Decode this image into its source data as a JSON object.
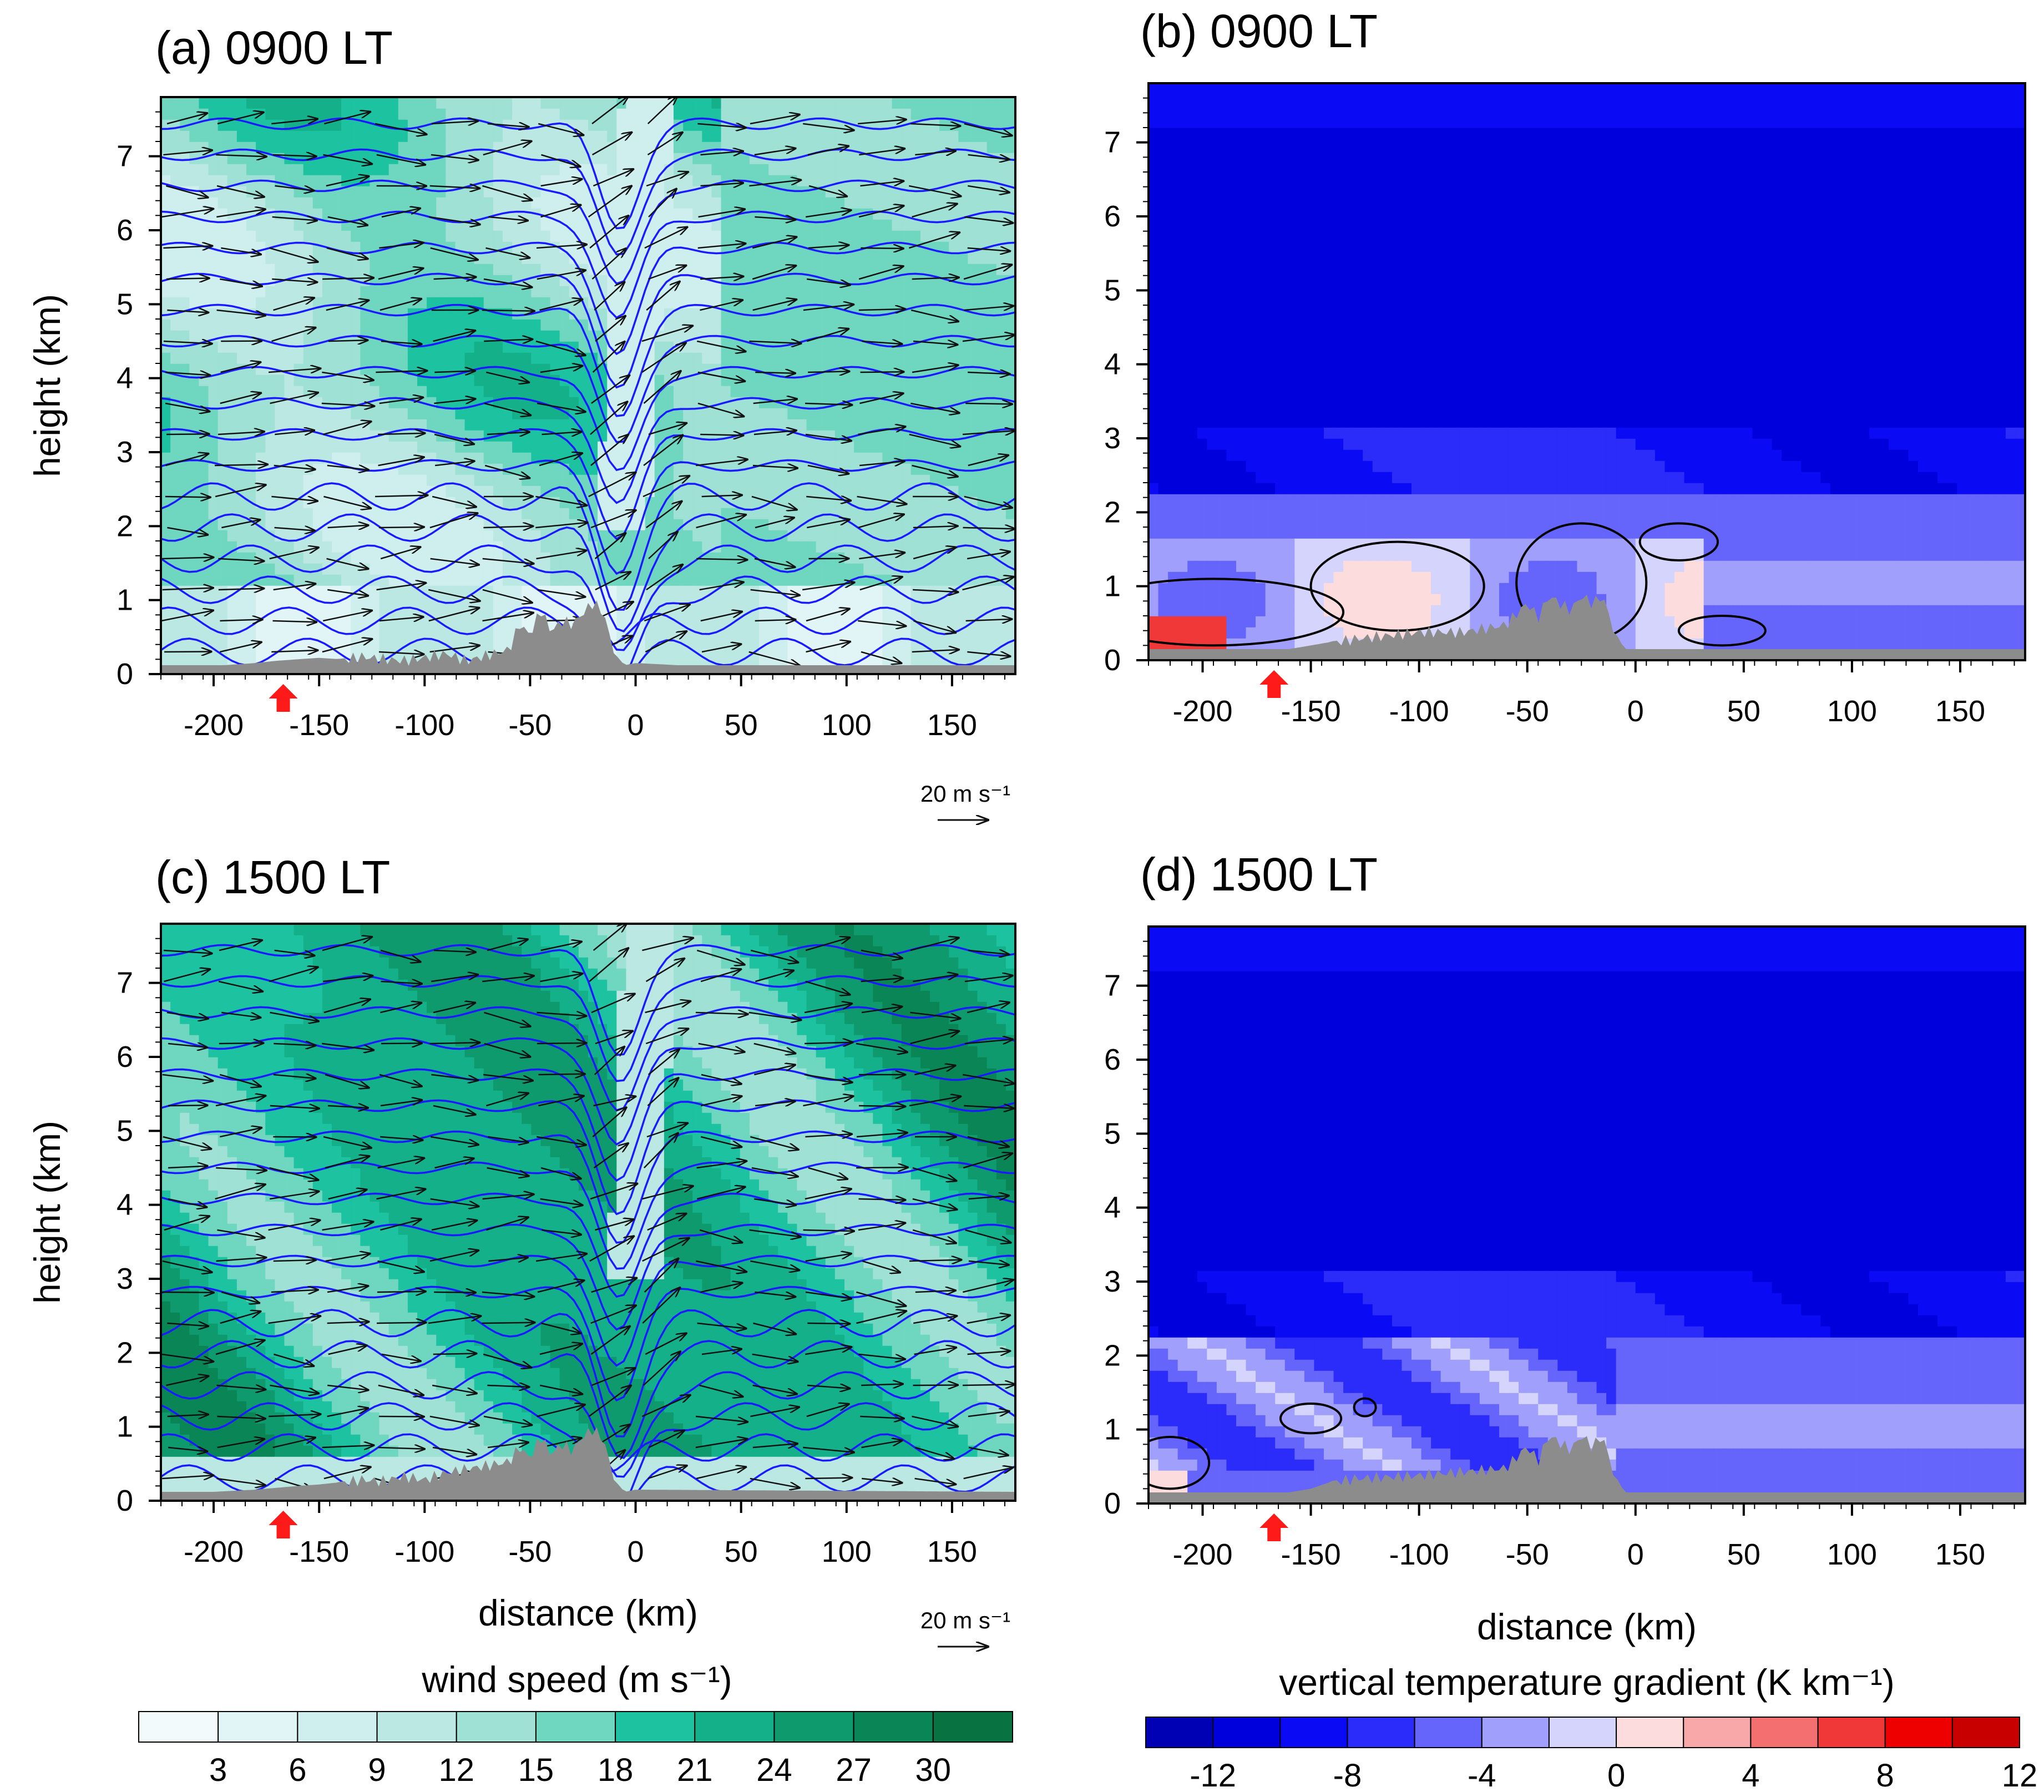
{
  "figure": {
    "colors": {
      "terrain": "#8c8c8c",
      "isentrope": "#1a1aff",
      "contour": "#000000",
      "marker": "#ff1a1a",
      "vector": "#111111"
    },
    "panels": [
      {
        "id": "a",
        "title": "(a) 0900 LT",
        "field": "wind",
        "time": "0900 LT",
        "ylabel": "height (km)",
        "xlabel": "",
        "ref_vector": "20 m s⁻¹"
      },
      {
        "id": "b",
        "title": "(b) 0900 LT",
        "field": "gradient",
        "time": "0900 LT",
        "ylabel": "",
        "xlabel": "",
        "ref_vector": ""
      },
      {
        "id": "c",
        "title": "(c) 1500 LT",
        "field": "wind",
        "time": "1500 LT",
        "ylabel": "height (km)",
        "xlabel": "distance (km)",
        "ref_vector": "20 m s⁻¹"
      },
      {
        "id": "d",
        "title": "(d) 1500 LT",
        "field": "gradient",
        "time": "1500 LT",
        "ylabel": "",
        "xlabel": "distance (km)",
        "ref_vector": ""
      }
    ],
    "colorbars": [
      {
        "id": "wind",
        "label": "wind speed (m s⁻¹)",
        "colors": [
          "#f3fafc",
          "#e1f4f6",
          "#cfeeee",
          "#bbe8e3",
          "#9fe1d4",
          "#6fd6c0",
          "#1dc3a0",
          "#14b08a",
          "#0f9a6e",
          "#0a8656",
          "#087240"
        ],
        "ticks": [
          "3",
          "6",
          "9",
          "12",
          "15",
          "18",
          "21",
          "24",
          "27",
          "30"
        ]
      },
      {
        "id": "gradient",
        "label": "vertical temperature gradient (K km⁻¹)",
        "colors": [
          "#0000b4",
          "#0000dc",
          "#0a0af5",
          "#2b2bfa",
          "#6565fb",
          "#a0a0fc",
          "#d4d4fc",
          "#fcdcdc",
          "#f8a8a8",
          "#f47070",
          "#f03838",
          "#ee0000",
          "#c80000"
        ],
        "ticks": [
          "-12",
          "-8",
          "-4",
          "0",
          "4",
          "8",
          "12"
        ]
      }
    ]
  },
  "chart_data": [
    {
      "panel": "a",
      "type": "heatmap",
      "title": "(a) 0900 LT",
      "quantity": "wind speed with wind vectors and isentropes",
      "xlabel": "",
      "ylabel": "height (km)",
      "xlim": [
        -225,
        180
      ],
      "ylim": [
        0,
        7.8
      ],
      "xticks": [
        -200,
        -150,
        -100,
        -50,
        0,
        50,
        100,
        150
      ],
      "yticks": [
        0,
        1,
        2,
        3,
        4,
        5,
        6,
        7
      ],
      "marker_x": -167,
      "reference_vector": "20 m s⁻¹",
      "terrain_km": {
        "x": [
          -225,
          -210,
          -195,
          -180,
          -170,
          -160,
          -150,
          -140,
          -130,
          -120,
          -110,
          -100,
          -90,
          -80,
          -70,
          -60,
          -55,
          -50,
          -45,
          -40,
          -35,
          -30,
          -25,
          -20,
          -15,
          -12,
          -8,
          -5,
          0,
          20,
          180
        ],
        "h": [
          0.12,
          0.12,
          0.12,
          0.15,
          0.18,
          0.2,
          0.22,
          0.2,
          0.25,
          0.22,
          0.2,
          0.24,
          0.3,
          0.2,
          0.28,
          0.35,
          0.7,
          0.55,
          0.9,
          0.6,
          0.75,
          0.7,
          0.85,
          1.0,
          0.85,
          0.5,
          0.2,
          0.12,
          0.15,
          0.12,
          0.12
        ]
      }
    },
    {
      "panel": "b",
      "type": "heatmap",
      "title": "(b) 0900 LT",
      "quantity": "vertical temperature gradient",
      "xlabel": "",
      "ylabel": "",
      "xlim": [
        -225,
        180
      ],
      "ylim": [
        0,
        7.8
      ],
      "xticks": [
        -200,
        -150,
        -100,
        -50,
        0,
        50,
        100,
        150
      ],
      "yticks": [
        0,
        1,
        2,
        3,
        4,
        5,
        6,
        7
      ],
      "marker_x": -167,
      "terrain_km": {
        "x": [
          -225,
          -160,
          -150,
          -130,
          -100,
          -80,
          -60,
          -50,
          -45,
          -40,
          -30,
          -25,
          -20,
          -15,
          -12,
          -8,
          -5,
          180
        ],
        "h": [
          0.15,
          0.15,
          0.2,
          0.3,
          0.4,
          0.4,
          0.5,
          0.8,
          0.6,
          0.9,
          0.7,
          0.9,
          0.8,
          0.9,
          0.6,
          0.3,
          0.15,
          0.15
        ]
      }
    },
    {
      "panel": "c",
      "type": "heatmap",
      "title": "(c) 1500 LT",
      "quantity": "wind speed with wind vectors and isentropes",
      "xlabel": "distance (km)",
      "ylabel": "height (km)",
      "xlim": [
        -225,
        180
      ],
      "ylim": [
        0,
        7.8
      ],
      "xticks": [
        -200,
        -150,
        -100,
        -50,
        0,
        50,
        100,
        150
      ],
      "yticks": [
        0,
        1,
        2,
        3,
        4,
        5,
        6,
        7
      ],
      "marker_x": -167,
      "reference_vector": "20 m s⁻¹",
      "terrain_km": {
        "x": [
          -225,
          -200,
          -180,
          -160,
          -150,
          -140,
          -130,
          -120,
          -110,
          -100,
          -90,
          -80,
          -70,
          -60,
          -55,
          -50,
          -45,
          -40,
          -35,
          -30,
          -25,
          -20,
          -15,
          -12,
          -8,
          -5,
          0,
          180
        ],
        "h": [
          0.12,
          0.12,
          0.15,
          0.2,
          0.22,
          0.25,
          0.3,
          0.28,
          0.35,
          0.3,
          0.4,
          0.45,
          0.5,
          0.55,
          0.75,
          0.6,
          0.9,
          0.65,
          0.8,
          0.7,
          0.9,
          1.0,
          0.85,
          0.5,
          0.2,
          0.12,
          0.15,
          0.12
        ]
      }
    },
    {
      "panel": "d",
      "type": "heatmap",
      "title": "(d) 1500 LT",
      "quantity": "vertical temperature gradient",
      "xlabel": "distance (km)",
      "ylabel": "",
      "xlim": [
        -225,
        180
      ],
      "ylim": [
        0,
        7.8
      ],
      "xticks": [
        -200,
        -150,
        -100,
        -50,
        0,
        50,
        100,
        150
      ],
      "yticks": [
        0,
        1,
        2,
        3,
        4,
        5,
        6,
        7
      ],
      "marker_x": -167,
      "terrain_km": {
        "x": [
          -225,
          -160,
          -150,
          -140,
          -130,
          -100,
          -80,
          -60,
          -50,
          -45,
          -40,
          -30,
          -25,
          -20,
          -15,
          -12,
          -8,
          -5,
          180
        ],
        "h": [
          0.15,
          0.15,
          0.2,
          0.3,
          0.35,
          0.4,
          0.45,
          0.5,
          0.8,
          0.6,
          0.95,
          0.75,
          0.95,
          0.8,
          0.95,
          0.6,
          0.3,
          0.15,
          0.15
        ]
      }
    }
  ]
}
